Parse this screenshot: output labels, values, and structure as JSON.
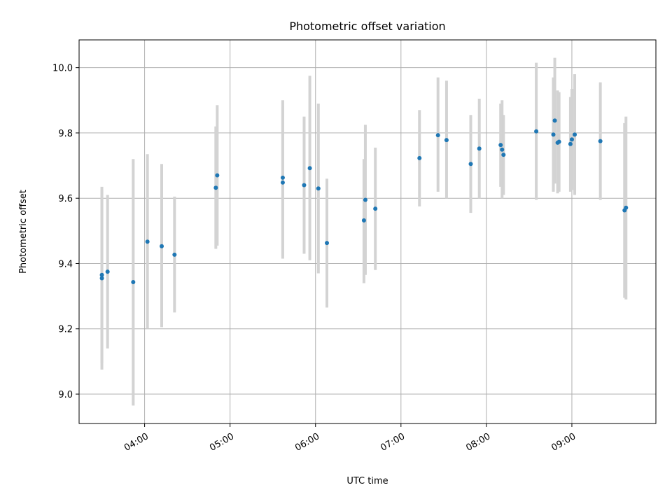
{
  "chart_data": {
    "type": "scatter",
    "title": "Photometric offset variation",
    "xlabel": "UTC time",
    "ylabel": "Photometric offset",
    "xlim": [
      "03:14",
      "09:59"
    ],
    "ylim": [
      8.91,
      10.085
    ],
    "x_ticks": [
      "04:00",
      "05:00",
      "06:00",
      "07:00",
      "08:00",
      "09:00"
    ],
    "y_ticks": [
      "9.0",
      "9.2",
      "9.4",
      "9.6",
      "9.8",
      "10.0"
    ],
    "grid": true,
    "marker_color": "#1f77b4",
    "errorbar_color": "#d3d3d3",
    "points": [
      {
        "t": "03:30",
        "y": 9.365,
        "ylow": 9.095,
        "yhigh": 9.635
      },
      {
        "t": "03:30",
        "y": 9.355,
        "ylow": 9.075,
        "yhigh": 9.625
      },
      {
        "t": "03:34",
        "y": 9.375,
        "ylow": 9.14,
        "yhigh": 9.61
      },
      {
        "t": "03:52",
        "y": 9.343,
        "ylow": 8.965,
        "yhigh": 9.72
      },
      {
        "t": "04:02",
        "y": 9.467,
        "ylow": 9.2,
        "yhigh": 9.735
      },
      {
        "t": "04:12",
        "y": 9.453,
        "ylow": 9.205,
        "yhigh": 9.705
      },
      {
        "t": "04:21",
        "y": 9.427,
        "ylow": 9.25,
        "yhigh": 9.605
      },
      {
        "t": "04:50",
        "y": 9.632,
        "ylow": 9.445,
        "yhigh": 9.82
      },
      {
        "t": "04:51",
        "y": 9.67,
        "ylow": 9.455,
        "yhigh": 9.885
      },
      {
        "t": "05:37",
        "y": 9.648,
        "ylow": 9.415,
        "yhigh": 9.88
      },
      {
        "t": "05:37",
        "y": 9.663,
        "ylow": 9.425,
        "yhigh": 9.9
      },
      {
        "t": "05:52",
        "y": 9.64,
        "ylow": 9.43,
        "yhigh": 9.85
      },
      {
        "t": "05:56",
        "y": 9.692,
        "ylow": 9.41,
        "yhigh": 9.975
      },
      {
        "t": "06:02",
        "y": 9.63,
        "ylow": 9.37,
        "yhigh": 9.89
      },
      {
        "t": "06:08",
        "y": 9.463,
        "ylow": 9.265,
        "yhigh": 9.66
      },
      {
        "t": "06:34",
        "y": 9.532,
        "ylow": 9.34,
        "yhigh": 9.72
      },
      {
        "t": "06:35",
        "y": 9.595,
        "ylow": 9.365,
        "yhigh": 9.825
      },
      {
        "t": "06:42",
        "y": 9.568,
        "ylow": 9.38,
        "yhigh": 9.755
      },
      {
        "t": "07:13",
        "y": 9.723,
        "ylow": 9.575,
        "yhigh": 9.87
      },
      {
        "t": "07:26",
        "y": 9.793,
        "ylow": 9.62,
        "yhigh": 9.97
      },
      {
        "t": "07:32",
        "y": 9.778,
        "ylow": 9.6,
        "yhigh": 9.96
      },
      {
        "t": "07:49",
        "y": 9.705,
        "ylow": 9.555,
        "yhigh": 9.855
      },
      {
        "t": "07:55",
        "y": 9.752,
        "ylow": 9.6,
        "yhigh": 9.905
      },
      {
        "t": "08:10",
        "y": 9.763,
        "ylow": 9.635,
        "yhigh": 9.89
      },
      {
        "t": "08:11",
        "y": 9.749,
        "ylow": 9.6,
        "yhigh": 9.9
      },
      {
        "t": "08:12",
        "y": 9.733,
        "ylow": 9.61,
        "yhigh": 9.855
      },
      {
        "t": "08:35",
        "y": 9.805,
        "ylow": 9.595,
        "yhigh": 10.015
      },
      {
        "t": "08:47",
        "y": 9.795,
        "ylow": 9.62,
        "yhigh": 9.97
      },
      {
        "t": "08:48",
        "y": 9.838,
        "ylow": 9.645,
        "yhigh": 10.03
      },
      {
        "t": "08:50",
        "y": 9.77,
        "ylow": 9.615,
        "yhigh": 9.93
      },
      {
        "t": "08:51",
        "y": 9.773,
        "ylow": 9.62,
        "yhigh": 9.925
      },
      {
        "t": "08:59",
        "y": 9.766,
        "ylow": 9.62,
        "yhigh": 9.91
      },
      {
        "t": "09:00",
        "y": 9.78,
        "ylow": 9.625,
        "yhigh": 9.935
      },
      {
        "t": "09:02",
        "y": 9.795,
        "ylow": 9.61,
        "yhigh": 9.98
      },
      {
        "t": "09:20",
        "y": 9.775,
        "ylow": 9.595,
        "yhigh": 9.955
      },
      {
        "t": "09:37",
        "y": 9.563,
        "ylow": 9.295,
        "yhigh": 9.83
      },
      {
        "t": "09:38",
        "y": 9.571,
        "ylow": 9.29,
        "yhigh": 9.85
      }
    ]
  }
}
